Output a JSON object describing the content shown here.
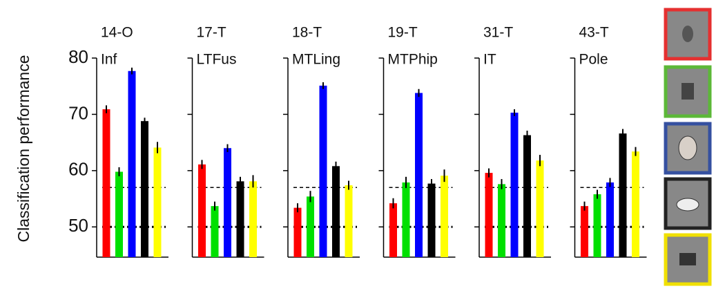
{
  "chart_data": [
    {
      "type": "bar",
      "title": "14-O",
      "subtitle": "Inf",
      "y_label": "Classification performance",
      "ylim": [
        45,
        80
      ],
      "yticks": [
        50,
        60,
        70,
        80
      ],
      "colors": [
        "#ff0000",
        "#00e000",
        "#0000ff",
        "#000000",
        "#ffff00"
      ],
      "values": [
        70.9,
        59.8,
        77.7,
        68.8,
        64.1
      ],
      "errors": [
        0.7,
        0.8,
        0.6,
        0.6,
        1.0
      ],
      "hlines": [
        {
          "value": 50,
          "width": 3
        },
        {
          "value": 57,
          "width": 1.5
        }
      ]
    },
    {
      "type": "bar",
      "title": "17-T",
      "subtitle": "LTFus",
      "ylim": [
        45,
        80
      ],
      "colors": [
        "#ff0000",
        "#00e000",
        "#0000ff",
        "#000000",
        "#ffff00"
      ],
      "values": [
        61.1,
        53.7,
        64.0,
        58.1,
        58.1
      ],
      "errors": [
        0.8,
        0.8,
        0.7,
        0.8,
        1.1
      ],
      "hlines": [
        {
          "value": 50,
          "width": 3
        },
        {
          "value": 57,
          "width": 1.5
        }
      ]
    },
    {
      "type": "bar",
      "title": "18-T",
      "subtitle": "MTLing",
      "ylim": [
        45,
        80
      ],
      "colors": [
        "#ff0000",
        "#00e000",
        "#0000ff",
        "#000000",
        "#ffff00"
      ],
      "values": [
        53.4,
        55.4,
        75.1,
        60.8,
        57.4
      ],
      "errors": [
        0.8,
        1.0,
        0.6,
        0.8,
        0.8
      ],
      "hlines": [
        {
          "value": 50,
          "width": 3
        },
        {
          "value": 57,
          "width": 1.5
        }
      ]
    },
    {
      "type": "bar",
      "title": "19-T",
      "subtitle": "MTPhip",
      "ylim": [
        45,
        80
      ],
      "colors": [
        "#ff0000",
        "#00e000",
        "#0000ff",
        "#000000",
        "#ffff00"
      ],
      "values": [
        54.2,
        57.9,
        73.8,
        57.7,
        59.1
      ],
      "errors": [
        0.9,
        1.0,
        0.7,
        0.8,
        1.1
      ],
      "hlines": [
        {
          "value": 50,
          "width": 3
        },
        {
          "value": 57,
          "width": 1.5
        }
      ]
    },
    {
      "type": "bar",
      "title": "31-T",
      "subtitle": "IT",
      "ylim": [
        45,
        80
      ],
      "colors": [
        "#ff0000",
        "#00e000",
        "#0000ff",
        "#000000",
        "#ffff00"
      ],
      "values": [
        59.6,
        57.6,
        70.3,
        66.3,
        61.8
      ],
      "errors": [
        0.8,
        0.9,
        0.6,
        0.8,
        1.0
      ],
      "hlines": [
        {
          "value": 50,
          "width": 3
        },
        {
          "value": 57,
          "width": 1.5
        }
      ]
    },
    {
      "type": "bar",
      "title": "43-T",
      "subtitle": "Pole",
      "ylim": [
        45,
        80
      ],
      "colors": [
        "#ff0000",
        "#00e000",
        "#0000ff",
        "#000000",
        "#ffff00"
      ],
      "values": [
        53.7,
        55.8,
        57.9,
        66.6,
        63.4
      ],
      "errors": [
        0.8,
        0.8,
        0.8,
        0.8,
        0.8
      ],
      "hlines": [
        {
          "value": 50,
          "width": 3
        },
        {
          "value": 57,
          "width": 1.5
        }
      ]
    }
  ]
}
